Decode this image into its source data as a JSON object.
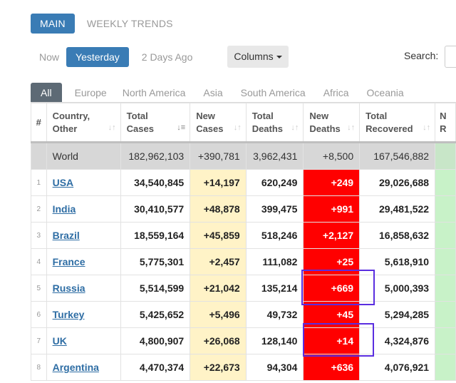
{
  "main_tabs": [
    {
      "label": "MAIN",
      "active": true
    },
    {
      "label": "WEEKLY TRENDS",
      "active": false
    }
  ],
  "day_filters": [
    {
      "label": "Now",
      "active": false
    },
    {
      "label": "Yesterday",
      "active": true
    },
    {
      "label": "2 Days Ago",
      "active": false
    }
  ],
  "columns_button": "Columns",
  "search_label": "Search:",
  "region_tabs": [
    {
      "label": "All",
      "active": true
    },
    {
      "label": "Europe"
    },
    {
      "label": "North America"
    },
    {
      "label": "Asia"
    },
    {
      "label": "South America"
    },
    {
      "label": "Africa"
    },
    {
      "label": "Oceania"
    }
  ],
  "table": {
    "headers": {
      "num": "#",
      "country_1": "Country,",
      "country_2": "Other",
      "total_cases_1": "Total",
      "total_cases_2": "Cases",
      "new_cases_1": "New",
      "new_cases_2": "Cases",
      "total_deaths_1": "Total",
      "total_deaths_2": "Deaths",
      "new_deaths_1": "New",
      "new_deaths_2": "Deaths",
      "total_recovered_1": "Total",
      "total_recovered_2": "Recovered",
      "extra_1": "N",
      "extra_2": "R"
    },
    "world": {
      "country": "World",
      "total_cases": "182,962,103",
      "new_cases": "+390,781",
      "total_deaths": "3,962,431",
      "new_deaths": "+8,500",
      "total_recovered": "167,546,882"
    },
    "rows": [
      {
        "idx": "1",
        "country": "USA",
        "total_cases": "34,540,845",
        "new_cases": "+14,197",
        "total_deaths": "620,249",
        "new_deaths": "+249",
        "total_recovered": "29,026,688"
      },
      {
        "idx": "2",
        "country": "India",
        "total_cases": "30,410,577",
        "new_cases": "+48,878",
        "total_deaths": "399,475",
        "new_deaths": "+991",
        "total_recovered": "29,481,522"
      },
      {
        "idx": "3",
        "country": "Brazil",
        "total_cases": "18,559,164",
        "new_cases": "+45,859",
        "total_deaths": "518,246",
        "new_deaths": "+2,127",
        "total_recovered": "16,858,632"
      },
      {
        "idx": "4",
        "country": "France",
        "total_cases": "5,775,301",
        "new_cases": "+2,457",
        "total_deaths": "111,082",
        "new_deaths": "+25",
        "total_recovered": "5,618,910"
      },
      {
        "idx": "5",
        "country": "Russia",
        "total_cases": "5,514,599",
        "new_cases": "+21,042",
        "total_deaths": "135,214",
        "new_deaths": "+669",
        "total_recovered": "5,000,393"
      },
      {
        "idx": "6",
        "country": "Turkey",
        "total_cases": "5,425,652",
        "new_cases": "+5,496",
        "total_deaths": "49,732",
        "new_deaths": "+45",
        "total_recovered": "5,294,285"
      },
      {
        "idx": "7",
        "country": "UK",
        "total_cases": "4,800,907",
        "new_cases": "+26,068",
        "total_deaths": "128,140",
        "new_deaths": "+14",
        "total_recovered": "4,324,876"
      },
      {
        "idx": "8",
        "country": "Argentina",
        "total_cases": "4,470,374",
        "new_cases": "+22,673",
        "total_deaths": "94,304",
        "new_deaths": "+636",
        "total_recovered": "4,076,921"
      }
    ]
  },
  "colors": {
    "accent": "#3a7cb5",
    "new_deaths_bg": "#ff0000",
    "new_cases_bg": "#fff3c7",
    "highlight_box": "#5a2ee0"
  }
}
